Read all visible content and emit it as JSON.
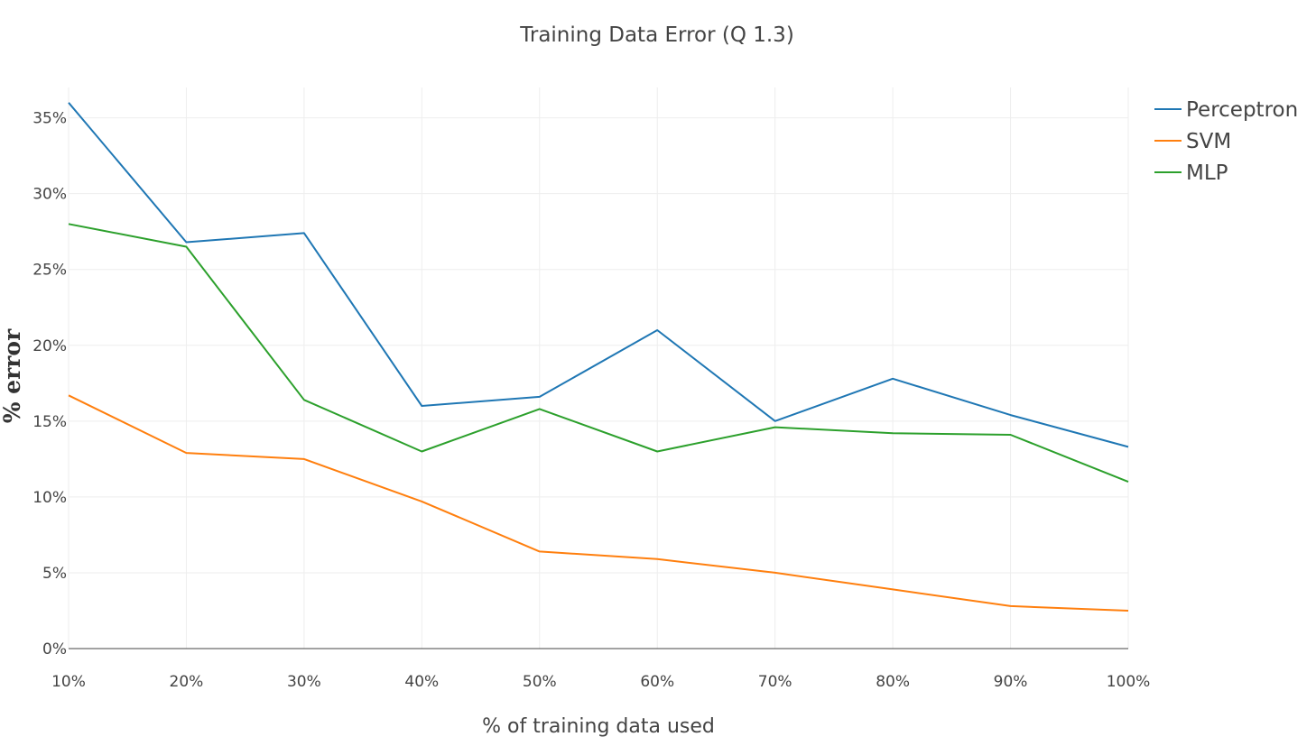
{
  "chart_data": {
    "type": "line",
    "title": "Training Data Error (Q 1.3)",
    "xlabel": "% of training data used",
    "ylabel": "% error",
    "categories": [
      "10%",
      "20%",
      "30%",
      "40%",
      "50%",
      "60%",
      "70%",
      "80%",
      "90%",
      "100%"
    ],
    "yticks": [
      "0%",
      "5%",
      "10%",
      "15%",
      "20%",
      "25%",
      "30%",
      "35%"
    ],
    "ylim": [
      0,
      37
    ],
    "grid": true,
    "legend_position": "top-right",
    "series": [
      {
        "name": "Perceptron",
        "color": "#1f77b4",
        "values": [
          36.0,
          26.8,
          27.4,
          16.0,
          16.6,
          21.0,
          15.0,
          17.8,
          15.4,
          13.3
        ]
      },
      {
        "name": "SVM",
        "color": "#ff7f0e",
        "values": [
          16.7,
          12.9,
          12.5,
          9.7,
          6.4,
          5.9,
          5.0,
          3.9,
          2.8,
          2.5
        ]
      },
      {
        "name": "MLP",
        "color": "#2ca02c",
        "values": [
          28.0,
          26.5,
          16.4,
          13.0,
          15.8,
          13.0,
          14.6,
          14.2,
          14.1,
          11.0
        ]
      }
    ]
  }
}
